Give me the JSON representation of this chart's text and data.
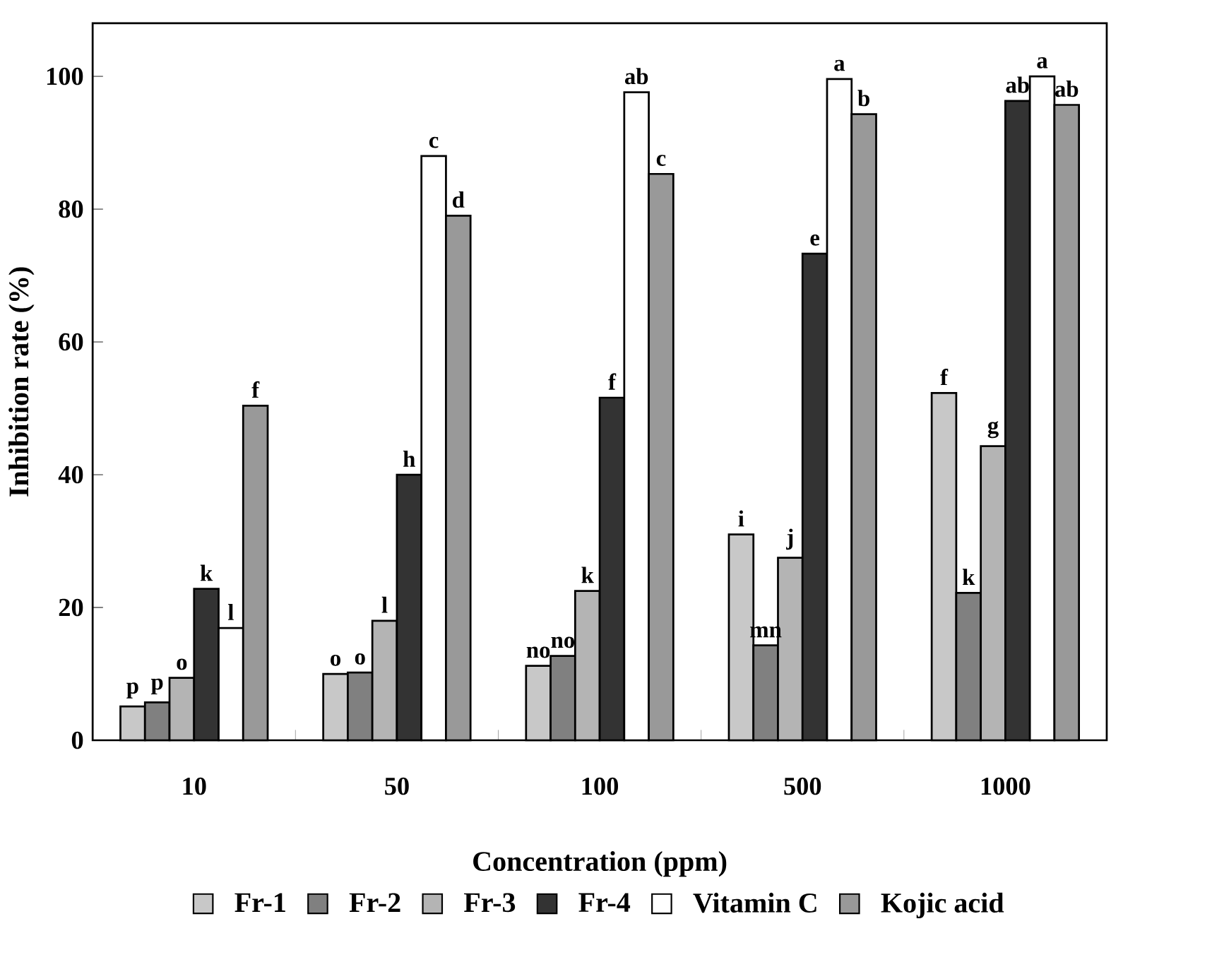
{
  "chart_data": {
    "type": "bar",
    "xlabel": "Concentration (ppm)",
    "ylabel": "Inhibition rate (%)",
    "categories": [
      "10",
      "50",
      "100",
      "500",
      "1000"
    ],
    "series": [
      {
        "name": "Fr-1",
        "color": "#c8c8c8",
        "values": [
          5.1,
          10.0,
          11.2,
          31.0,
          52.3
        ],
        "value_labels": [
          "p",
          "o",
          "no",
          "i",
          "f"
        ]
      },
      {
        "name": "Fr-2",
        "color": "#808080",
        "values": [
          5.7,
          10.2,
          12.7,
          14.3,
          22.2
        ],
        "value_labels": [
          "p",
          "o",
          "no",
          "mn",
          "k"
        ]
      },
      {
        "name": "Fr-3",
        "color": "#b4b4b4",
        "values": [
          9.4,
          18.0,
          22.5,
          27.5,
          44.3
        ],
        "value_labels": [
          "o",
          "l",
          "k",
          "j",
          "g"
        ]
      },
      {
        "name": "Fr-4",
        "color": "#333333",
        "values": [
          22.8,
          40.0,
          51.6,
          73.3,
          96.3
        ],
        "value_labels": [
          "k",
          "h",
          "f",
          "e",
          "ab"
        ]
      },
      {
        "name": "Vitamin C",
        "color": "#ffffff",
        "values": [
          16.9,
          88.0,
          97.6,
          99.6,
          100.0
        ],
        "value_labels": [
          "l",
          "c",
          "ab",
          "a",
          "a"
        ]
      },
      {
        "name": "Kojic acid",
        "color": "#999999",
        "values": [
          50.4,
          79.0,
          85.3,
          94.3,
          95.7
        ],
        "value_labels": [
          "f",
          "d",
          "c",
          "b",
          "ab"
        ]
      }
    ],
    "ylim": [
      0,
      108
    ],
    "yticks": [
      0,
      20,
      40,
      60,
      80,
      100
    ],
    "grid": false,
    "legend": "bottom"
  }
}
